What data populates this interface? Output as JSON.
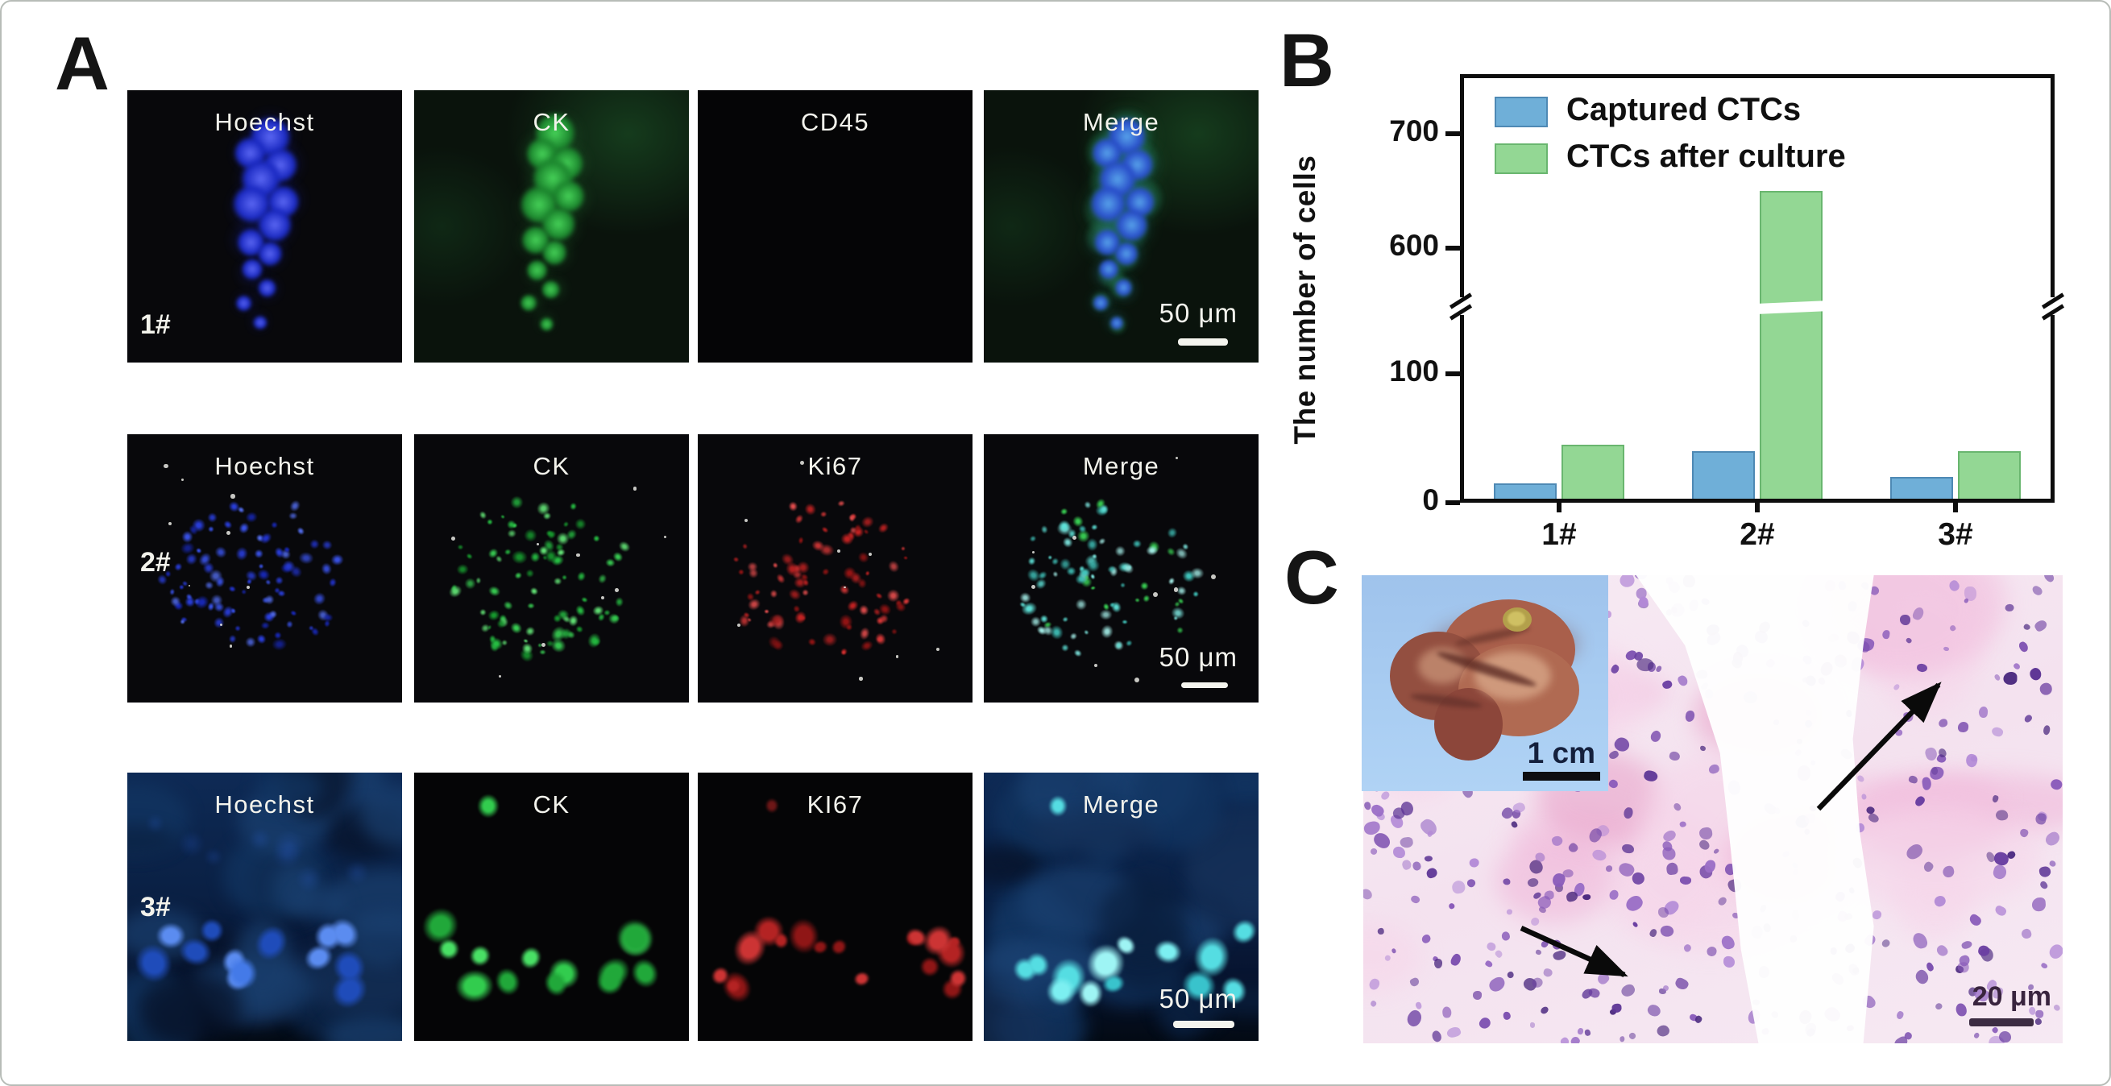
{
  "panels": {
    "a": {
      "label": "A",
      "rows": [
        {
          "id": "1#",
          "channels": [
            "Hoechst",
            "CK",
            "CD45",
            "Merge"
          ],
          "scale_bar": "50 μm"
        },
        {
          "id": "2#",
          "channels": [
            "Hoechst",
            "CK",
            "Ki67",
            "Merge"
          ],
          "scale_bar": "50 μm"
        },
        {
          "id": "3#",
          "channels": [
            "Hoechst",
            "CK",
            "KI67",
            "Merge"
          ],
          "scale_bar": "50 μm"
        }
      ]
    },
    "b": {
      "label": "B"
    },
    "c": {
      "label": "C",
      "inset_scale_bar": "1 cm",
      "scale_bar": "20 μm"
    }
  },
  "chart_data": {
    "type": "bar",
    "title": "",
    "ylabel": "The number of cells",
    "xlabel": "",
    "categories": [
      "1#",
      "2#",
      "3#"
    ],
    "series": [
      {
        "name": "Captured CTCs",
        "color": "#6fafd8",
        "border": "#4e89b4",
        "values": [
          15,
          40,
          20
        ]
      },
      {
        "name": "CTCs after culture",
        "color": "#93d794",
        "border": "#69b66f",
        "values": [
          45,
          650,
          40
        ]
      }
    ],
    "y_ticks": [
      0,
      100,
      600,
      700
    ],
    "ylim": [
      0,
      760
    ],
    "axis_break": {
      "between": [
        100,
        600
      ]
    },
    "legend_position": "top-left",
    "grid": false
  }
}
